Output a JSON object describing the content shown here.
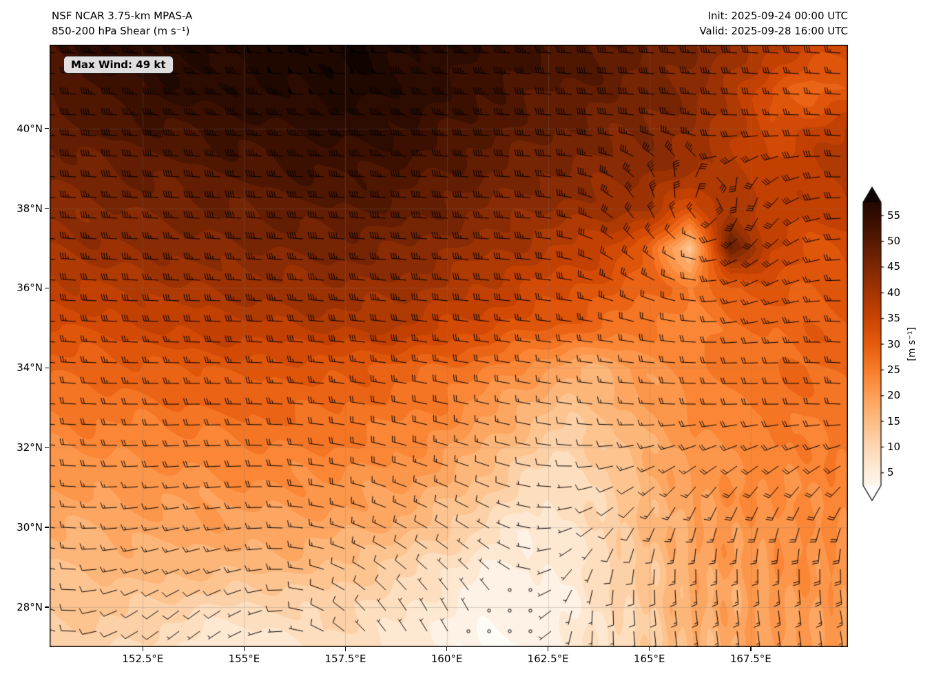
{
  "header": {
    "title_line1": "NSF NCAR 3.75-km MPAS-A",
    "title_line2": "850-200 hPa Shear (m s⁻¹)",
    "init_label": "Init: 2025-09-24 00:00 UTC",
    "valid_label": "Valid: 2025-09-28 16:00 UTC"
  },
  "map": {
    "max_wind_label": "Max Wind: 49 kt",
    "x_ticks": [
      {
        "label": "152.5°E",
        "lon": 152.5
      },
      {
        "label": "155°E",
        "lon": 155
      },
      {
        "label": "157.5°E",
        "lon": 157.5
      },
      {
        "label": "160°E",
        "lon": 160
      },
      {
        "label": "162.5°E",
        "lon": 162.5
      },
      {
        "label": "165°E",
        "lon": 165
      },
      {
        "label": "167.5°E",
        "lon": 167.5
      }
    ],
    "y_ticks": [
      {
        "label": "40°N",
        "lat": 40
      },
      {
        "label": "38°N",
        "lat": 38
      },
      {
        "label": "36°N",
        "lat": 36
      },
      {
        "label": "34°N",
        "lat": 34
      },
      {
        "label": "32°N",
        "lat": 32
      },
      {
        "label": "30°N",
        "lat": 30
      },
      {
        "label": "28°N",
        "lat": 28
      }
    ]
  },
  "colorbar": {
    "ticks": [
      5,
      10,
      15,
      20,
      25,
      30,
      35,
      40,
      45,
      50,
      55
    ],
    "label": "[m s⁻¹]"
  },
  "chart_data": {
    "type": "heatmap",
    "title": "NSF NCAR 3.75-km MPAS-A",
    "subtitle": "850-200 hPa Shear (m s⁻¹)",
    "init": "2025-09-24 00:00 UTC",
    "valid": "2025-09-28 16:00 UTC",
    "max_wind_kt": 49,
    "units": "m s⁻¹",
    "lon_range": [
      150.2,
      169.9
    ],
    "lat_range": [
      27.0,
      42.1
    ],
    "colorbar": {
      "min": 5,
      "max": 55,
      "tick_step": 5,
      "extend": "both",
      "contour_interval": 2.5
    },
    "colormap_stops": [
      [
        0,
        "#ffffff"
      ],
      [
        5,
        "#feeedd"
      ],
      [
        10,
        "#fdd8b3"
      ],
      [
        15,
        "#fdbd85"
      ],
      [
        20,
        "#fd9f56"
      ],
      [
        25,
        "#f97d2b"
      ],
      [
        30,
        "#e65c0e"
      ],
      [
        35,
        "#cb4402"
      ],
      [
        40,
        "#a63603"
      ],
      [
        45,
        "#7f2704"
      ],
      [
        50,
        "#581a02"
      ],
      [
        55,
        "#330d01"
      ],
      [
        62,
        "#0d0300"
      ]
    ],
    "grid": {
      "lons": [
        150,
        151,
        152,
        153,
        154,
        155,
        156,
        157,
        158,
        159,
        160,
        161,
        162,
        163,
        164,
        165,
        166,
        167,
        168,
        169,
        170
      ],
      "lats": [
        27,
        28,
        29,
        30,
        31,
        32,
        33,
        34,
        35,
        36,
        37,
        38,
        39,
        40,
        41,
        42
      ],
      "shear_ms": [
        [
          12,
          11,
          10,
          8,
          6,
          5,
          7,
          9,
          8,
          6,
          4,
          2,
          3,
          5,
          8,
          12,
          16,
          18,
          19,
          20,
          20
        ],
        [
          13,
          13,
          13,
          12,
          10,
          9,
          10,
          11,
          10,
          8,
          5,
          3,
          3,
          5,
          9,
          13,
          17,
          19,
          20,
          21,
          21
        ],
        [
          15,
          15,
          16,
          16,
          16,
          16,
          16,
          15,
          13,
          11,
          8,
          5,
          4,
          6,
          10,
          14,
          18,
          20,
          21,
          22,
          22
        ],
        [
          17,
          18,
          18,
          19,
          19,
          19,
          19,
          19,
          18,
          16,
          13,
          9,
          6,
          7,
          11,
          15,
          19,
          21,
          22,
          22,
          23
        ],
        [
          20,
          20,
          21,
          21,
          21,
          22,
          22,
          22,
          21,
          20,
          17,
          13,
          9,
          8,
          12,
          16,
          20,
          22,
          23,
          23,
          24
        ],
        [
          22,
          23,
          23,
          24,
          24,
          25,
          25,
          25,
          24,
          23,
          21,
          17,
          13,
          10,
          13,
          18,
          21,
          23,
          24,
          25,
          25
        ],
        [
          25,
          26,
          26,
          27,
          27,
          28,
          28,
          28,
          27,
          26,
          24,
          21,
          17,
          14,
          16,
          20,
          23,
          25,
          26,
          26,
          27
        ],
        [
          28,
          28,
          29,
          30,
          30,
          31,
          31,
          31,
          30,
          29,
          27,
          25,
          22,
          18,
          18,
          21,
          24,
          26,
          27,
          28,
          28
        ],
        [
          32,
          33,
          34,
          35,
          36,
          37,
          37,
          38,
          38,
          37,
          35,
          33,
          31,
          29,
          27,
          25,
          24,
          26,
          28,
          29,
          30
        ],
        [
          36,
          37,
          38,
          39,
          40,
          41,
          42,
          42,
          42,
          41,
          39,
          37,
          35,
          33,
          31,
          28,
          25,
          30,
          32,
          30,
          31
        ],
        [
          40,
          41,
          42,
          43,
          44,
          45,
          45,
          46,
          46,
          45,
          43,
          41,
          39,
          37,
          35,
          30,
          12,
          48,
          35,
          32,
          33
        ],
        [
          43,
          44,
          45,
          46,
          47,
          48,
          49,
          50,
          50,
          49,
          47,
          45,
          43,
          42,
          41,
          40,
          33,
          40,
          36,
          36,
          38
        ],
        [
          45,
          47,
          48,
          49,
          50,
          51,
          52,
          53,
          53,
          52,
          50,
          48,
          46,
          45,
          44,
          43,
          41,
          38,
          36,
          37,
          39
        ],
        [
          48,
          50,
          51,
          52,
          53,
          54,
          55,
          56,
          56,
          55,
          53,
          51,
          49,
          47,
          46,
          45,
          43,
          38,
          33,
          35,
          38
        ],
        [
          50,
          52,
          54,
          56,
          57,
          57,
          58,
          59,
          59,
          57,
          55,
          53,
          51,
          50,
          48,
          46,
          44,
          40,
          32,
          28,
          30
        ],
        [
          52,
          55,
          57,
          58,
          58,
          58,
          59,
          60,
          60,
          58,
          57,
          55,
          53,
          52,
          50,
          48,
          45,
          42,
          38,
          35,
          33
        ]
      ]
    },
    "cyclone_center": {
      "lon": 166.4,
      "lat": 37.3
    },
    "wind_barbs": {
      "speed_from_shear_factor": 0.82,
      "calm_threshold_kt": 3,
      "max_speed_kt": 49,
      "spacing_px": 30
    }
  }
}
